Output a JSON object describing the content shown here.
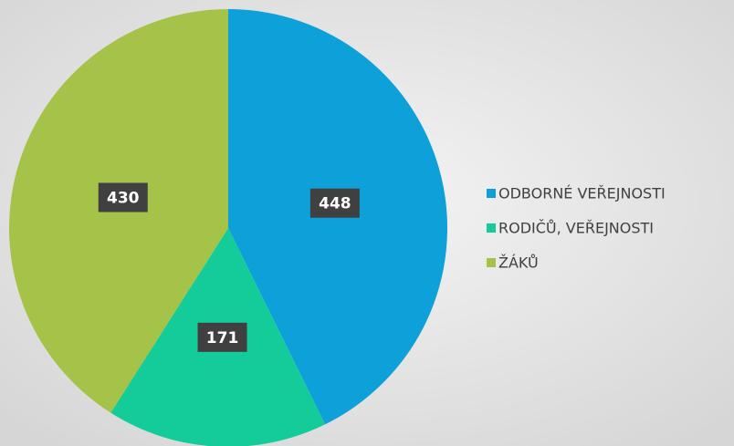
{
  "chart_data": {
    "type": "pie",
    "categories": [
      "ODBORNÉ VEŘEJNOSTI",
      "RODIČŮ, VEŘEJNOSTI",
      "ŽÁKŮ"
    ],
    "values": [
      448,
      171,
      430
    ],
    "colors": [
      "#0ea0d8",
      "#14cc9a",
      "#a5c249"
    ],
    "legend": "right"
  }
}
